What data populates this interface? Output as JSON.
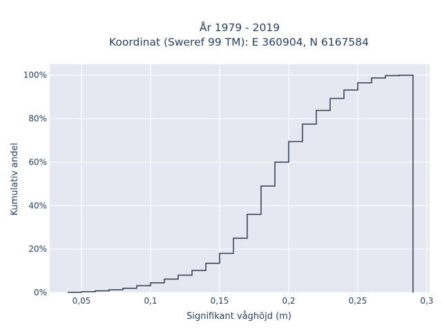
{
  "chart_data": {
    "type": "line",
    "subtype": "cumulative-step-histogram",
    "title_line1": "År 1979 - 2019",
    "title_line2": "Koordinat (Sweref 99 TM): E 360904, N 6167584",
    "xlabel": "Signifikant våghöjd (m)",
    "ylabel": "Kumulativ andel",
    "xlim": [
      0.027,
      0.302
    ],
    "ylim": [
      0,
      1.05
    ],
    "x_ticks": [
      0.05,
      0.1,
      0.15,
      0.2,
      0.25,
      0.3
    ],
    "x_tick_labels": [
      "0,05",
      "0,1",
      "0,15",
      "0,2",
      "0,25",
      "0,3"
    ],
    "y_ticks": [
      0,
      0.2,
      0.4,
      0.6,
      0.8,
      1.0
    ],
    "y_tick_labels": [
      "0%",
      "20%",
      "40%",
      "60%",
      "80%",
      "100%"
    ],
    "grid": true,
    "line_color": "#2f3a4a",
    "plot_background": "#e5e8f0",
    "bin_edges": [
      0.04,
      0.05,
      0.06,
      0.07,
      0.08,
      0.09,
      0.1,
      0.11,
      0.12,
      0.13,
      0.14,
      0.15,
      0.16,
      0.17,
      0.18,
      0.19,
      0.2,
      0.21,
      0.22,
      0.23,
      0.24,
      0.25,
      0.26,
      0.27,
      0.28,
      0.29
    ],
    "cumulative_values": [
      0.001,
      0.004,
      0.008,
      0.013,
      0.02,
      0.032,
      0.045,
      0.062,
      0.08,
      0.102,
      0.135,
      0.18,
      0.25,
      0.36,
      0.49,
      0.6,
      0.695,
      0.775,
      0.838,
      0.893,
      0.932,
      0.965,
      0.987,
      0.998,
      1.0
    ]
  }
}
